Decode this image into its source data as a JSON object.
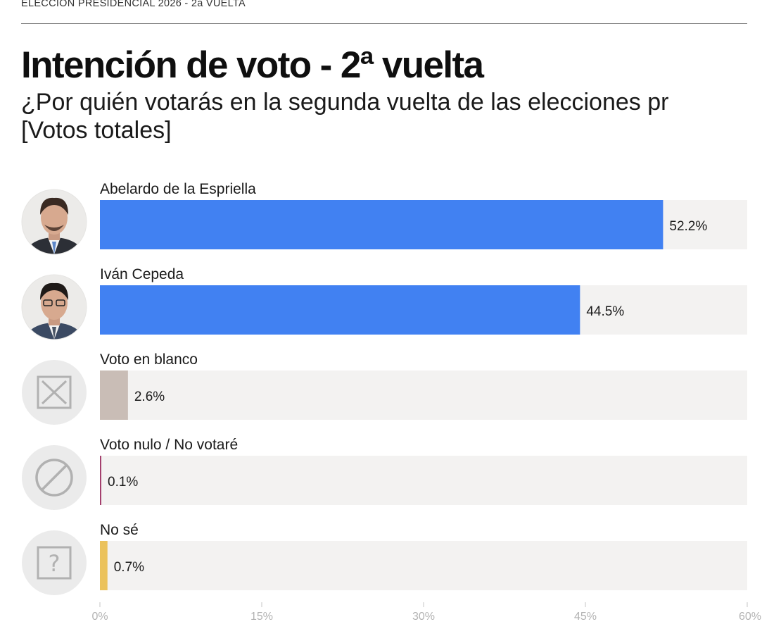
{
  "header": {
    "kicker": "ELECCIÓN PRESIDENCIAL 2026 - 2a VUELTA",
    "title": "Intención de voto - 2ª vuelta",
    "subtitle_line1": "¿Por quién votarás en la segunda vuelta de las elecciones pr",
    "subtitle_line2": "[Votos totales]"
  },
  "chart_data": {
    "type": "bar",
    "orientation": "horizontal",
    "categories": [
      "Abelardo de la Espriella",
      "Iván Cepeda",
      "Voto en blanco",
      "Voto nulo / No votaré",
      "No sé"
    ],
    "values": [
      52.2,
      44.5,
      2.6,
      0.1,
      0.7
    ],
    "value_labels": [
      "52.2%",
      "44.5%",
      "2.6%",
      "0.1%",
      "0.7%"
    ],
    "colors": [
      "#4181f2",
      "#4181f2",
      "#c9bdb6",
      "#a4406e",
      "#ebc25c"
    ],
    "icons": [
      "candidate-photo",
      "candidate-photo",
      "blank-vote-icon",
      "null-vote-icon",
      "unknown-icon"
    ],
    "xlim": [
      0,
      60
    ],
    "xticks": [
      0,
      15,
      30,
      45,
      60
    ],
    "xtick_labels": [
      "0%",
      "15%",
      "30%",
      "45%",
      "60%"
    ],
    "track_color": "#f3f2f1",
    "grid": false,
    "legend": "none"
  }
}
